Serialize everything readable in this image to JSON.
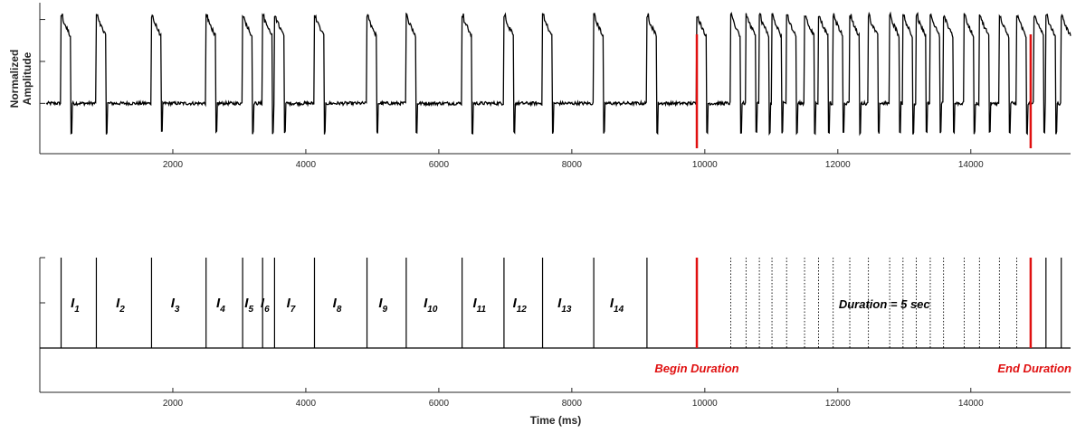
{
  "chart_data": [
    {
      "type": "line",
      "title": "",
      "xlabel": "",
      "ylabel": "Normalized Amplitude",
      "xlim": [
        0,
        15500
      ],
      "ylim": [
        -0.6,
        1.2
      ],
      "xticks": [
        2000,
        4000,
        6000,
        8000,
        10000,
        12000,
        14000
      ],
      "xtick_labels": [
        "2000",
        "4000",
        "6000",
        "8000",
        "10000",
        "12000",
        "14000"
      ],
      "baseline": 0,
      "pulse_peak": 1.0,
      "pulse_width_ms": 150,
      "negative_dip": -0.35,
      "pulse_onsets_ms": [
        320,
        850,
        1680,
        2500,
        3050,
        3350,
        3530,
        4130,
        4920,
        5510,
        6350,
        6980,
        7560,
        8330,
        9130,
        9880,
        10390,
        10620,
        10820,
        11010,
        11230,
        11500,
        11710,
        11930,
        12180,
        12460,
        12780,
        12980,
        13180,
        13390,
        13590,
        13900,
        14130,
        14430,
        14690,
        14950,
        15130,
        15360
      ],
      "markers": [
        {
          "x": 9880,
          "label": "Begin Duration",
          "color": "#e01010"
        },
        {
          "x": 14900,
          "label": "End Duration",
          "color": "#e01010"
        }
      ]
    },
    {
      "type": "event-raster",
      "title": "",
      "xlabel": "Time (ms)",
      "ylabel": "",
      "xlim": [
        0,
        15500
      ],
      "xticks": [
        2000,
        4000,
        6000,
        8000,
        10000,
        12000,
        14000
      ],
      "xtick_labels": [
        "2000",
        "4000",
        "6000",
        "8000",
        "10000",
        "12000",
        "14000"
      ],
      "solid_events_ms": [
        320,
        850,
        1680,
        2500,
        3050,
        3350,
        3530,
        4130,
        4920,
        5510,
        6350,
        6980,
        7560,
        8330,
        9130,
        15130,
        15360
      ],
      "dotted_events_ms": [
        10390,
        10620,
        10820,
        11010,
        11230,
        11500,
        11710,
        11930,
        12180,
        12460,
        12780,
        12980,
        13180,
        13390,
        13590,
        13900,
        14130,
        14430,
        14690
      ],
      "interval_labels": [
        {
          "base": "I",
          "sub": "1"
        },
        {
          "base": "I",
          "sub": "2"
        },
        {
          "base": "I",
          "sub": "3"
        },
        {
          "base": "I",
          "sub": "4"
        },
        {
          "base": "I",
          "sub": "5"
        },
        {
          "base": "I",
          "sub": "6"
        },
        {
          "base": "I",
          "sub": "7"
        },
        {
          "base": "I",
          "sub": "8"
        },
        {
          "base": "I",
          "sub": "9"
        },
        {
          "base": "I",
          "sub": "10"
        },
        {
          "base": "I",
          "sub": "11"
        },
        {
          "base": "I",
          "sub": "12"
        },
        {
          "base": "I",
          "sub": "13"
        },
        {
          "base": "I",
          "sub": "14"
        }
      ],
      "interval_bounds_ms": [
        320,
        850,
        1680,
        2500,
        3050,
        3350,
        3530,
        4130,
        4920,
        5510,
        6350,
        6980,
        7560,
        8330,
        9130,
        9880
      ],
      "duration_text": "Duration = 5 sec",
      "duration_x_ms": 12700,
      "markers": [
        {
          "x": 9880,
          "label": "Begin Duration",
          "color": "#e01010"
        },
        {
          "x": 14900,
          "label": "End Duration",
          "color": "#e01010"
        }
      ]
    }
  ]
}
